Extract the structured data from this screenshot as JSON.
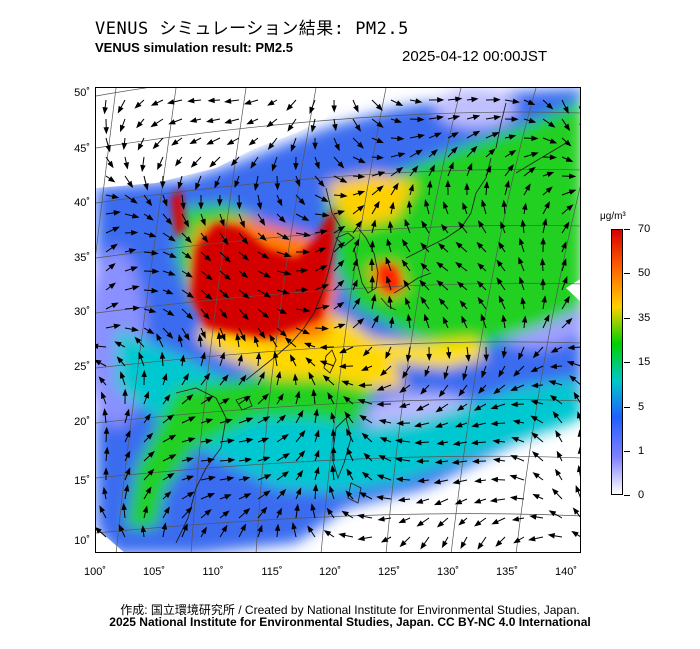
{
  "title_jp": "VENUS シミュレーション結果: PM2.5",
  "title_en": "VENUS simulation result: PM2.5",
  "timestamp": "2025-04-12 00:00JST",
  "map": {
    "lat_labels": [
      "50˚",
      "45˚",
      "40˚",
      "35˚",
      "30˚",
      "25˚",
      "20˚",
      "15˚",
      "10˚"
    ],
    "lon_labels": [
      "100˚",
      "105˚",
      "110˚",
      "115˚",
      "120˚",
      "125˚",
      "130˚",
      "135˚",
      "140˚"
    ]
  },
  "colorbar": {
    "unit": "μg/m³",
    "labels": [
      "70",
      "50",
      "35",
      "15",
      "5",
      "1",
      "0"
    ],
    "colors": [
      "#d80000",
      "#ff6000",
      "#ffd000",
      "#00d000",
      "#00c8c8",
      "#2060ff",
      "#8080ff",
      "#ffffff"
    ]
  },
  "credits": {
    "line1": "作成: 国立環境研究所 / Created by National Institute for Environmental Studies, Japan.",
    "line2": "2025 National Institute for Environmental Studies, Japan. CC BY-NC 4.0 International"
  }
}
